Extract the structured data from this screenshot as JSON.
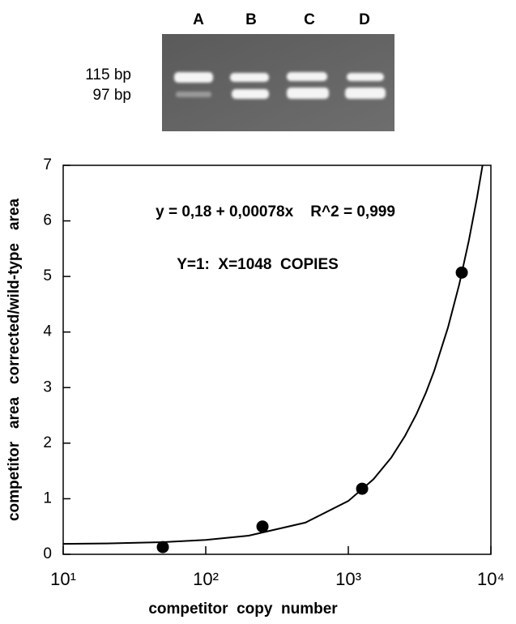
{
  "gel": {
    "lanes": [
      "A",
      "B",
      "C",
      "D"
    ],
    "band_labels": [
      "115 bp",
      "97 bp"
    ]
  },
  "chart_data": {
    "type": "scatter",
    "annotations": [
      "y = 0,18 + 0,00078x    R^2 = 0,999",
      "Y=1:  X=1048  COPIES"
    ],
    "xlabel": "competitor  copy  number",
    "ylabel": "competitor   area   corrected/wild-type   area",
    "log_x": true,
    "xlim": [
      10,
      10000
    ],
    "ylim": [
      0,
      7
    ],
    "xticks": [
      {
        "value": 10,
        "label": "10¹"
      },
      {
        "value": 100,
        "label": "10²"
      },
      {
        "value": 1000,
        "label": "10³"
      },
      {
        "value": 10000,
        "label": "10⁴"
      }
    ],
    "yticks": [
      0,
      1,
      2,
      3,
      4,
      5,
      6,
      7
    ],
    "series": [
      {
        "type": "line",
        "color": "#000000",
        "x": [
          10,
          20,
          50,
          100,
          200,
          500,
          1000,
          1500,
          2000,
          2500,
          3000,
          3500,
          4000,
          5000,
          6000,
          7000,
          8000,
          8744
        ],
        "values": [
          0.188,
          0.196,
          0.219,
          0.258,
          0.336,
          0.57,
          0.96,
          1.35,
          1.74,
          2.13,
          2.52,
          2.91,
          3.3,
          4.08,
          4.86,
          5.64,
          6.42,
          7.0
        ]
      },
      {
        "type": "scatter",
        "color": "#000000",
        "x": [
          50,
          250,
          1250,
          6250
        ],
        "values": [
          0.13,
          0.5,
          1.18,
          5.07
        ]
      }
    ]
  }
}
